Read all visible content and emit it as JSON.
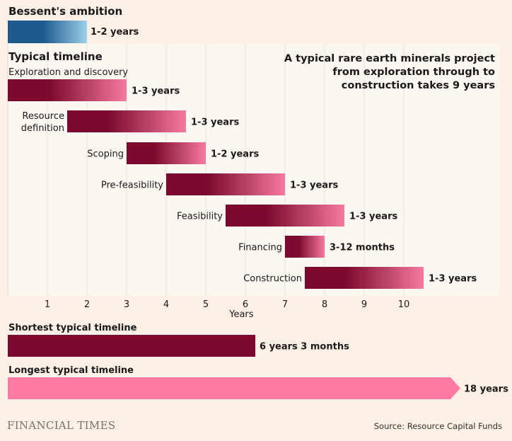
{
  "chart_data": {
    "type": "bar",
    "subtype": "gantt",
    "xlabel": "Years",
    "xlim": [
      0,
      12.4
    ],
    "xticks": [
      1,
      2,
      3,
      4,
      5,
      6,
      7,
      8,
      9,
      10
    ],
    "grid": true,
    "annotation": [
      "A typical rare earth minerals project",
      "from exploration through to",
      "construction takes 9 years"
    ],
    "ambition": {
      "title": "Bessent's ambition",
      "bar": {
        "start": 0,
        "end": 2,
        "label": "1-2 years"
      }
    },
    "typical": {
      "title": "Typical timeline",
      "stages": [
        {
          "name": [
            "Exploration and discovery"
          ],
          "start": 0,
          "end": 3,
          "label": "1-3 years",
          "name_above": true
        },
        {
          "name": [
            "Resource",
            "definition"
          ],
          "start": 1.5,
          "end": 4.5,
          "label": "1-3 years"
        },
        {
          "name": [
            "Scoping"
          ],
          "start": 3,
          "end": 5,
          "label": "1-2 years"
        },
        {
          "name": [
            "Pre-feasibility"
          ],
          "start": 4,
          "end": 7,
          "label": "1-3 years"
        },
        {
          "name": [
            "Feasibility"
          ],
          "start": 5.5,
          "end": 8.5,
          "label": "1-3 years"
        },
        {
          "name": [
            "Financing"
          ],
          "start": 7,
          "end": 8,
          "label": "3-12 months"
        },
        {
          "name": [
            "Construction"
          ],
          "start": 7.5,
          "end": 10.5,
          "label": "1-3 years"
        }
      ]
    },
    "totals": [
      {
        "title": "Shortest typical timeline",
        "value": 6.25,
        "label": "6 years 3 months",
        "truncated": false
      },
      {
        "title": "Longest typical timeline",
        "value": 18,
        "label": "18 years",
        "truncated": true
      }
    ]
  },
  "colors": {
    "background": "#fdf0e6",
    "plot_panel": "#fdf7f2",
    "gridline": "#e8dfd7",
    "blue_dark": "#1e5a8e",
    "blue_light": "#9dd0ea",
    "claret": "#7d0a2e",
    "pink": "#ff7ba3"
  },
  "footer": {
    "logo": "FINANCIAL TIMES",
    "source": "Source: Resource Capital Funds"
  }
}
